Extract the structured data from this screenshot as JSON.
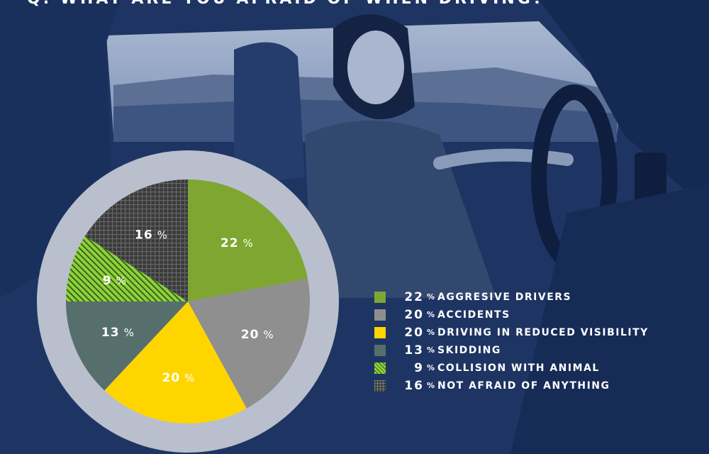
{
  "title": "Q. WHAT ARE YOU AFRAID OF WHEN DRIVING?",
  "chart_data": {
    "type": "pie",
    "unit": "%",
    "legend_position": "right",
    "slices": [
      {
        "label": "AGGRESIVE DRIVERS",
        "value": 22,
        "color": "#7ea630",
        "pattern": "solid"
      },
      {
        "label": "ACCIDENTS",
        "value": 20,
        "color": "#8f8f8f",
        "pattern": "solid"
      },
      {
        "label": "DRIVING IN REDUCED VISIBILITY",
        "value": 20,
        "color": "#ffd500",
        "pattern": "solid"
      },
      {
        "label": "SKIDDING",
        "value": 13,
        "color": "#566f6d",
        "pattern": "solid"
      },
      {
        "label": "COLLISION WITH ANIMAL",
        "value": 9,
        "color": "#8fd13a",
        "pattern": "diagonal-dots"
      },
      {
        "label": "NOT AFRAID OF ANYTHING",
        "value": 16,
        "color": "#3a3a3a",
        "pattern": "grid"
      }
    ]
  }
}
